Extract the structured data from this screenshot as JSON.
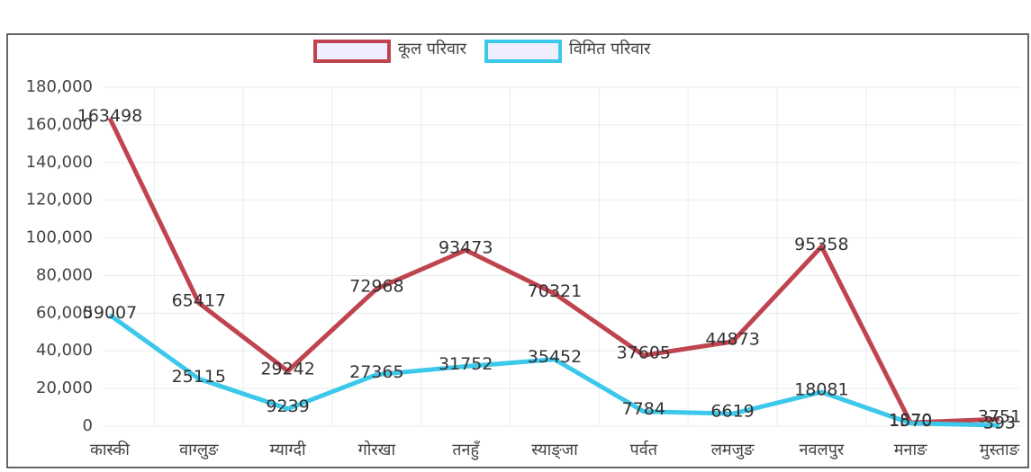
{
  "chart_data": {
    "type": "line",
    "categories": [
      "कास्की",
      "वाग्लुङ",
      "म्याग्दी",
      "गोरखा",
      "तनहुँ",
      "स्याङ्जा",
      "पर्वत",
      "लमजुङ",
      "नवलपुर",
      "मनाङ",
      "मुस्ताङ"
    ],
    "series": [
      {
        "name": "कूल परिवार",
        "color": "#c0444f",
        "values": [
          163498,
          65417,
          29242,
          72968,
          93473,
          70321,
          37605,
          44873,
          95358,
          1870,
          3751
        ]
      },
      {
        "name": "विमित परिवार",
        "color": "#3cc8ea",
        "values": [
          59007,
          25115,
          9239,
          27365,
          31752,
          35452,
          7784,
          6619,
          18081,
          1570,
          393
        ]
      }
    ],
    "ylim": [
      0,
      180000
    ],
    "yticks": [
      0,
      {
        "value": 20000,
        "label": "20,000"
      },
      {
        "value": 40000,
        "label": "40,000"
      },
      {
        "value": 60000,
        "label": "60,000"
      },
      {
        "value": 80000,
        "label": "80,000"
      },
      {
        "value": 100000,
        "label": "100,000"
      },
      {
        "value": 120000,
        "label": "120,000"
      },
      {
        "value": 140000,
        "label": "140,000"
      },
      {
        "value": 160000,
        "label": "160,000"
      },
      {
        "value": 180000,
        "label": "180,000"
      }
    ],
    "grid": true,
    "legend": "top"
  }
}
